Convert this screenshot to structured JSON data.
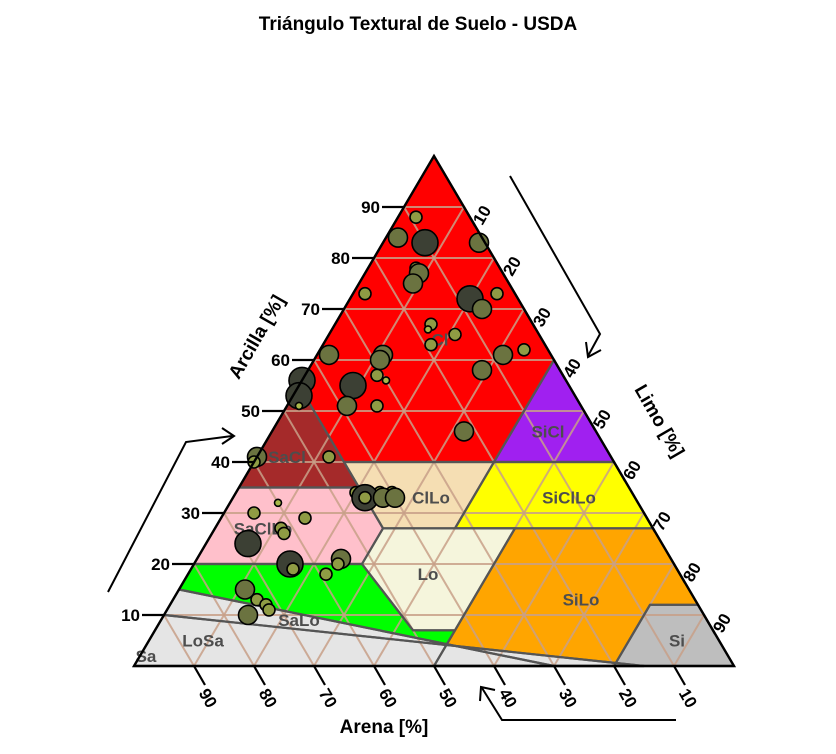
{
  "chart_data": {
    "type": "scatter",
    "title": "Triángulo Textural de Suelo - USDA",
    "axes": {
      "clay": {
        "label": "Arcilla [%]",
        "ticks": [
          10,
          20,
          30,
          40,
          50,
          60,
          70,
          80,
          90
        ]
      },
      "silt": {
        "label": "Limo [%]",
        "ticks": [
          10,
          20,
          30,
          40,
          50,
          60,
          70,
          80,
          90
        ]
      },
      "sand": {
        "label": "Arena [%]",
        "ticks": [
          90,
          80,
          70,
          60,
          50,
          40,
          30,
          20,
          10
        ]
      }
    },
    "grid": true,
    "classes": [
      {
        "code": "Cl",
        "fill": "#ff0000",
        "label_at": {
          "clay": 64,
          "silt": 19
        }
      },
      {
        "code": "SiCl",
        "fill": "#a020f0",
        "label_at": {
          "clay": 46,
          "silt": 46
        }
      },
      {
        "code": "SaCl",
        "fill": "#a52a2a",
        "label_at": {
          "clay": 41,
          "silt": 5
        }
      },
      {
        "code": "SiClLo",
        "fill": "#ffff00",
        "label_at": {
          "clay": 33,
          "silt": 56
        }
      },
      {
        "code": "ClLo",
        "fill": "#f5deb3",
        "label_at": {
          "clay": 33,
          "silt": 33
        }
      },
      {
        "code": "SaClLo",
        "fill": "#ffc0cb",
        "label_at": {
          "clay": 27,
          "silt": 8
        }
      },
      {
        "code": "Lo",
        "fill": "#f5f5dc",
        "label_at": {
          "clay": 18,
          "silt": 40
        }
      },
      {
        "code": "SiLo",
        "fill": "#ffa500",
        "label_at": {
          "clay": 13,
          "silt": 68
        }
      },
      {
        "code": "SaLo",
        "fill": "#00ff00",
        "label_at": {
          "clay": 9,
          "silt": 23
        }
      },
      {
        "code": "LoSa",
        "fill": "#e5e5e5",
        "label_at": {
          "clay": 5,
          "silt": 9
        }
      },
      {
        "code": "Sa",
        "fill": "#e5e5e5",
        "label_at": {
          "clay": 2,
          "silt": 1
        }
      },
      {
        "code": "Si",
        "fill": "#bebebe",
        "label_at": {
          "clay": 5,
          "silt": 88
        }
      }
    ],
    "points": [
      {
        "clay": 88,
        "silt": 3,
        "size": "s"
      },
      {
        "clay": 84,
        "silt": 2,
        "size": "m"
      },
      {
        "clay": 83,
        "silt": 7,
        "size": "l"
      },
      {
        "clay": 83,
        "silt": 16,
        "size": "m"
      },
      {
        "clay": 78,
        "silt": 8,
        "size": "s"
      },
      {
        "clay": 77,
        "silt": 9,
        "size": "m"
      },
      {
        "clay": 75,
        "silt": 9,
        "size": "m"
      },
      {
        "clay": 73,
        "silt": 2,
        "size": "s"
      },
      {
        "clay": 73,
        "silt": 24,
        "size": "s"
      },
      {
        "clay": 72,
        "silt": 20,
        "size": "l"
      },
      {
        "clay": 70,
        "silt": 23,
        "size": "m"
      },
      {
        "clay": 67,
        "silt": 16,
        "size": "s"
      },
      {
        "clay": 66,
        "silt": 16,
        "size": "xs"
      },
      {
        "clay": 65,
        "silt": 21,
        "size": "s"
      },
      {
        "clay": 63,
        "silt": 18,
        "size": "s"
      },
      {
        "clay": 62,
        "silt": 34,
        "size": "s"
      },
      {
        "clay": 61,
        "silt": 31,
        "size": "m"
      },
      {
        "clay": 61,
        "silt": 2,
        "size": "m"
      },
      {
        "clay": 61,
        "silt": 11,
        "size": "m"
      },
      {
        "clay": 60,
        "silt": 11,
        "size": "m"
      },
      {
        "clay": 58,
        "silt": 29,
        "size": "m"
      },
      {
        "clay": 57,
        "silt": 12,
        "size": "s"
      },
      {
        "clay": 56,
        "silt": 14,
        "size": "xs"
      },
      {
        "clay": 56,
        "silt": 0,
        "size": "l"
      },
      {
        "clay": 55,
        "silt": 9,
        "size": "l"
      },
      {
        "clay": 53,
        "silt": 1,
        "size": "l"
      },
      {
        "clay": 51,
        "silt": 9,
        "size": "xs"
      },
      {
        "clay": 51,
        "silt": 2,
        "size": "xs"
      },
      {
        "clay": 51,
        "silt": 10,
        "size": "m"
      },
      {
        "clay": 51,
        "silt": 15,
        "size": "s"
      },
      {
        "clay": 46,
        "silt": 32,
        "size": "m"
      },
      {
        "clay": 41,
        "silt": 12,
        "size": "s"
      },
      {
        "clay": 41,
        "silt": 0,
        "size": "m"
      },
      {
        "clay": 40,
        "silt": 0,
        "size": "s"
      },
      {
        "clay": 34,
        "silt": 20,
        "size": "s"
      },
      {
        "clay": 34,
        "silt": 24,
        "size": "s"
      },
      {
        "clay": 34,
        "silt": 26,
        "size": "s"
      },
      {
        "clay": 33,
        "silt": 21,
        "size": "s"
      },
      {
        "clay": 33,
        "silt": 22,
        "size": "l"
      },
      {
        "clay": 33,
        "silt": 25,
        "size": "m"
      },
      {
        "clay": 33,
        "silt": 27,
        "size": "m"
      },
      {
        "clay": 33,
        "silt": 22,
        "size": "s"
      },
      {
        "clay": 32,
        "silt": 8,
        "size": "xs"
      },
      {
        "clay": 30,
        "silt": 5,
        "size": "s"
      },
      {
        "clay": 29,
        "silt": 14,
        "size": "s"
      },
      {
        "clay": 27,
        "silt": 11,
        "size": "s"
      },
      {
        "clay": 26,
        "silt": 12,
        "size": "s"
      },
      {
        "clay": 24,
        "silt": 7,
        "size": "l"
      },
      {
        "clay": 21,
        "silt": 24,
        "size": "m"
      },
      {
        "clay": 20,
        "silt": 24,
        "size": "s"
      },
      {
        "clay": 20,
        "silt": 16,
        "size": "l"
      },
      {
        "clay": 19,
        "silt": 17,
        "size": "s"
      },
      {
        "clay": 18,
        "silt": 23,
        "size": "s"
      },
      {
        "clay": 15,
        "silt": 11,
        "size": "m"
      },
      {
        "clay": 13,
        "silt": 14,
        "size": "s"
      },
      {
        "clay": 12,
        "silt": 16,
        "size": "s"
      },
      {
        "clay": 11,
        "silt": 17,
        "size": "s"
      },
      {
        "clay": 10,
        "silt": 14,
        "size": "m"
      }
    ]
  }
}
